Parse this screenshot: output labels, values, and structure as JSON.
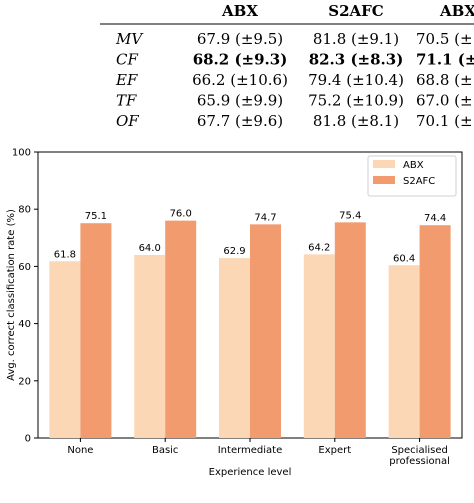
{
  "table": {
    "columns": [
      "ABX",
      "S2AFC",
      "ABX"
    ],
    "rows": [
      {
        "label": "MV",
        "values": [
          "67.9 (±9.5)",
          "81.8 (±9.1)",
          "70.5 (±"
        ],
        "bold": [
          false,
          false,
          false
        ]
      },
      {
        "label": "CF",
        "values": [
          "68.2 (±9.3)",
          "82.3 (±8.3)",
          "71.1 (±"
        ],
        "bold": [
          true,
          true,
          true
        ]
      },
      {
        "label": "EF",
        "values": [
          "66.2 (±10.6)",
          "79.4 (±10.4)",
          "68.8 (±"
        ],
        "bold": [
          false,
          false,
          false
        ]
      },
      {
        "label": "TF",
        "values": [
          "65.9 (±9.9)",
          "75.2 (±10.9)",
          "67.0 (±"
        ],
        "bold": [
          false,
          false,
          false
        ]
      },
      {
        "label": "OF",
        "values": [
          "67.7 (±9.6)",
          "81.8 (±8.1)",
          "70.1 (±"
        ],
        "bold": [
          false,
          false,
          false
        ]
      }
    ]
  },
  "chart_data": {
    "type": "bar",
    "categories": [
      "None",
      "Basic",
      "Intermediate",
      "Expert",
      "Specialised professional"
    ],
    "series": [
      {
        "name": "ABX",
        "values": [
          61.8,
          64.0,
          62.9,
          64.2,
          60.4
        ],
        "color": "#fbd7b5"
      },
      {
        "name": "S2AFC",
        "values": [
          75.1,
          76.0,
          74.7,
          75.4,
          74.4
        ],
        "color": "#f19b6e"
      }
    ],
    "title": "",
    "xlabel": "Experience level",
    "ylabel": "Avg. correct classification rate (%)",
    "ylim": [
      0,
      100
    ],
    "yticks": [
      0,
      20,
      40,
      60,
      80,
      100
    ],
    "grid": false,
    "legend": "top-right"
  }
}
